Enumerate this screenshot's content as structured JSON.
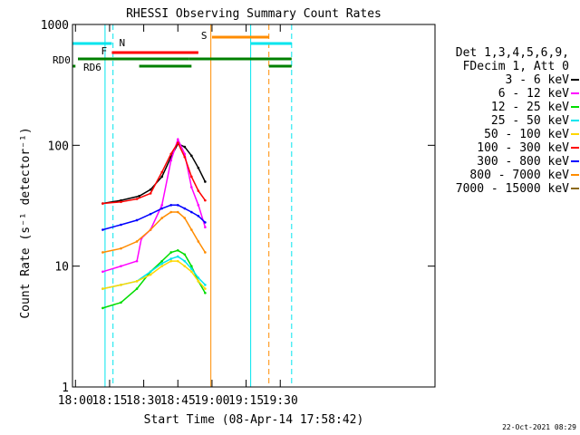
{
  "chart_data": {
    "type": "line",
    "title": "RHESSI Observing Summary Count Rates",
    "xlabel": "Start Time (08-Apr-14 17:58:42)",
    "ylabel": "Count Rate (s⁻¹ detector⁻¹)",
    "y_scale": "log",
    "xlim": [
      "17:58:42",
      "20:38:00"
    ],
    "ylim": [
      1,
      1000
    ],
    "x_ticks": [
      "18:00",
      "18:15",
      "18:30",
      "18:45",
      "19:00",
      "19:15",
      "19:30"
    ],
    "y_ticks": [
      "1",
      "10",
      "100",
      "1000"
    ],
    "legend_header": [
      "Det 1,3,4,5,6,9,",
      "FDecim 1, Att 0"
    ],
    "legend_position": "right",
    "timestamp": "22-Oct-2021 08:29",
    "flags": [
      {
        "label": "N",
        "color": "#00e5ee",
        "segments": [
          [
            "17:58:42",
            "18:16:00"
          ],
          [
            "19:17:00",
            "19:35:00"
          ]
        ]
      },
      {
        "label": "F",
        "color": "#ff0000",
        "segments": [
          [
            "18:16:00",
            "18:54:00"
          ]
        ]
      },
      {
        "label": "S",
        "color": "#ff8c00",
        "segments": [
          [
            "19:00:00",
            "19:25:00"
          ]
        ]
      },
      {
        "label": "RD0",
        "color": "#008000",
        "segments": [
          [
            "17:58:42",
            "18:50:00"
          ],
          [
            "18:50:00",
            "19:35:00"
          ]
        ]
      },
      {
        "label": "RD6",
        "color": "#008000",
        "segments": [
          [
            "17:58:42",
            "18:00:00"
          ],
          [
            "18:28:00",
            "18:51:00"
          ],
          [
            "19:25:00",
            "19:35:00"
          ]
        ]
      }
    ],
    "vertical_lines": [
      {
        "time": "18:13:00",
        "color": "#00e5ee",
        "style": "solid"
      },
      {
        "time": "18:16:30",
        "color": "#00e5ee",
        "style": "dashed"
      },
      {
        "time": "18:59:30",
        "color": "#ff8c00",
        "style": "solid"
      },
      {
        "time": "19:17:00",
        "color": "#00e5ee",
        "style": "solid"
      },
      {
        "time": "19:25:00",
        "color": "#ff8c00",
        "style": "dashed"
      },
      {
        "time": "19:35:00",
        "color": "#00e5ee",
        "style": "dashed"
      }
    ],
    "series": [
      {
        "name": "3 - 6 keV",
        "color": "#000000",
        "x": [
          "18:12",
          "18:20",
          "18:28",
          "18:33",
          "18:38",
          "18:42",
          "18:45",
          "18:48",
          "18:51",
          "18:54",
          "18:57"
        ],
        "y": [
          33,
          35,
          38,
          43,
          55,
          80,
          103,
          97,
          82,
          65,
          50
        ]
      },
      {
        "name": "6 - 12 keV",
        "color": "#ff00ff",
        "x": [
          "18:12",
          "18:20",
          "18:27",
          "18:29",
          "18:33",
          "18:38",
          "18:42",
          "18:45",
          "18:48",
          "18:51",
          "18:54",
          "18:57"
        ],
        "y": [
          9,
          10,
          11,
          17,
          20,
          32,
          75,
          112,
          85,
          45,
          32,
          21
        ]
      },
      {
        "name": "12 - 25 keV",
        "color": "#00dd00",
        "x": [
          "18:12",
          "18:20",
          "18:27",
          "18:33",
          "18:38",
          "18:42",
          "18:45",
          "18:48",
          "18:51",
          "18:54",
          "18:57"
        ],
        "y": [
          4.5,
          5,
          6.5,
          9,
          11,
          13,
          13.5,
          12.5,
          10,
          7.5,
          6
        ]
      },
      {
        "name": "25 - 50 keV",
        "color": "#00e5ee",
        "x": [
          "18:12",
          "18:20",
          "18:27",
          "18:33",
          "18:38",
          "18:42",
          "18:45",
          "18:48",
          "18:51",
          "18:54",
          "18:57"
        ],
        "y": [
          6.5,
          7,
          7.5,
          9,
          10.5,
          11.5,
          12,
          11,
          9.5,
          8,
          7
        ]
      },
      {
        "name": "50 - 100 keV",
        "color": "#ffd700",
        "x": [
          "18:12",
          "18:20",
          "18:27",
          "18:33",
          "18:38",
          "18:42",
          "18:45",
          "18:48",
          "18:51",
          "18:54",
          "18:57"
        ],
        "y": [
          6.5,
          7,
          7.5,
          8.5,
          10,
          11,
          11,
          10,
          9,
          7.5,
          6.5
        ]
      },
      {
        "name": "100 - 300 keV",
        "color": "#ff0000",
        "x": [
          "18:12",
          "18:20",
          "18:27",
          "18:33",
          "18:38",
          "18:42",
          "18:45",
          "18:48",
          "18:51",
          "18:54",
          "18:57"
        ],
        "y": [
          33,
          34,
          36,
          40,
          60,
          85,
          105,
          80,
          55,
          42,
          35
        ]
      },
      {
        "name": "300 - 800 keV",
        "color": "#0000ff",
        "x": [
          "18:12",
          "18:20",
          "18:27",
          "18:33",
          "18:38",
          "18:42",
          "18:45",
          "18:48",
          "18:51",
          "18:54",
          "18:57"
        ],
        "y": [
          20,
          22,
          24,
          27,
          30,
          32,
          32,
          30,
          28,
          26,
          23
        ]
      },
      {
        "name": "800 - 7000 keV",
        "color": "#ff8c00",
        "x": [
          "18:12",
          "18:20",
          "18:27",
          "18:33",
          "18:38",
          "18:42",
          "18:45",
          "18:48",
          "18:51",
          "18:54",
          "18:57"
        ],
        "y": [
          13,
          14,
          16,
          20,
          25,
          28,
          28,
          25,
          20,
          16,
          13
        ]
      },
      {
        "name": "7000 - 15000 keV",
        "color": "#8b6914",
        "x": [],
        "y": []
      }
    ]
  }
}
